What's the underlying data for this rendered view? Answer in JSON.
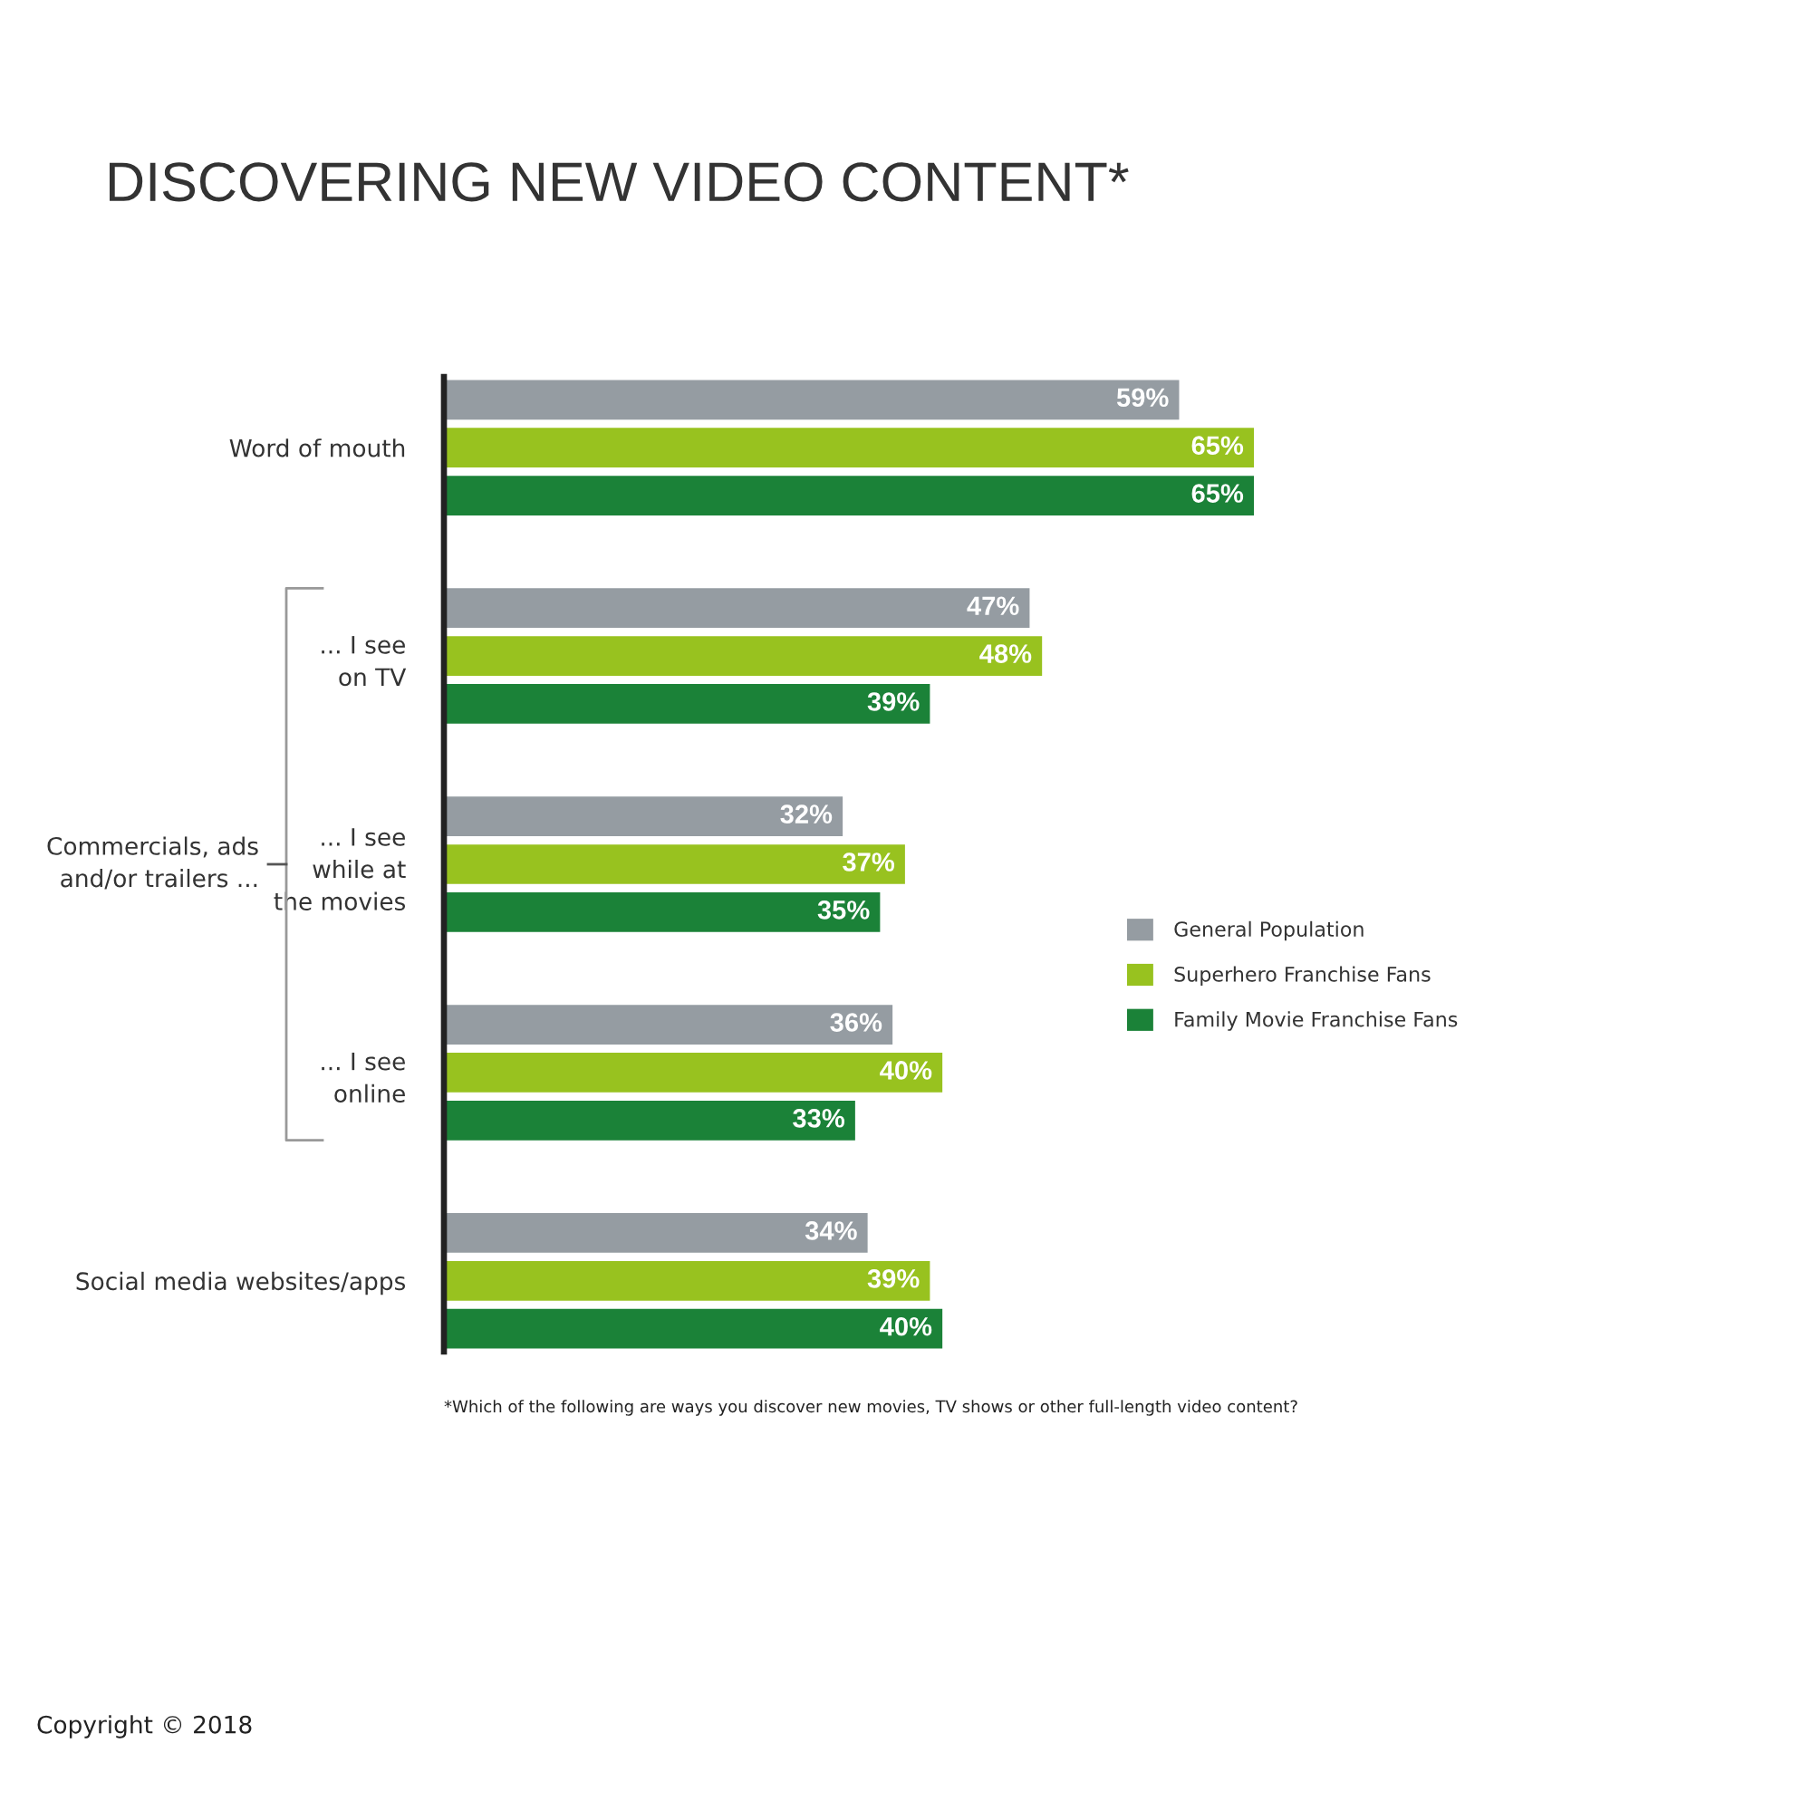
{
  "chart_data": {
    "type": "bar",
    "orientation": "horizontal",
    "title": "DISCOVERING NEW VIDEO CONTENT*",
    "categories": [
      "Word of mouth",
      "... I see\non TV",
      "... I see\nwhile at\nthe movies",
      "... I see\nonline",
      "Social media websites/apps"
    ],
    "series": [
      {
        "name": "General Population",
        "color": "#959ca2",
        "values": [
          59,
          47,
          32,
          36,
          34
        ],
        "value_labels": [
          "59%",
          "47%",
          "32%",
          "36%",
          "34%"
        ]
      },
      {
        "name": "Superhero Franchise Fans",
        "color": "#98c21f",
        "values": [
          65,
          48,
          37,
          40,
          39
        ],
        "value_labels": [
          "65%",
          "48%",
          "37%",
          "40%",
          "39%"
        ]
      },
      {
        "name": "Family Movie Franchise Fans",
        "color": "#1b8238",
        "values": [
          65,
          39,
          35,
          33,
          40
        ],
        "value_labels": [
          "65%",
          "39%",
          "35%",
          "33%",
          "40%"
        ]
      }
    ],
    "legend": "right",
    "tick_labels": "y",
    "grid": false,
    "annotations": [
      "Commercials, ads\nand/or trailers ...",
      "*Which of the following are ways you discover new movies, TV shows or other full-length video content?",
      "Copyright © 2018"
    ]
  }
}
